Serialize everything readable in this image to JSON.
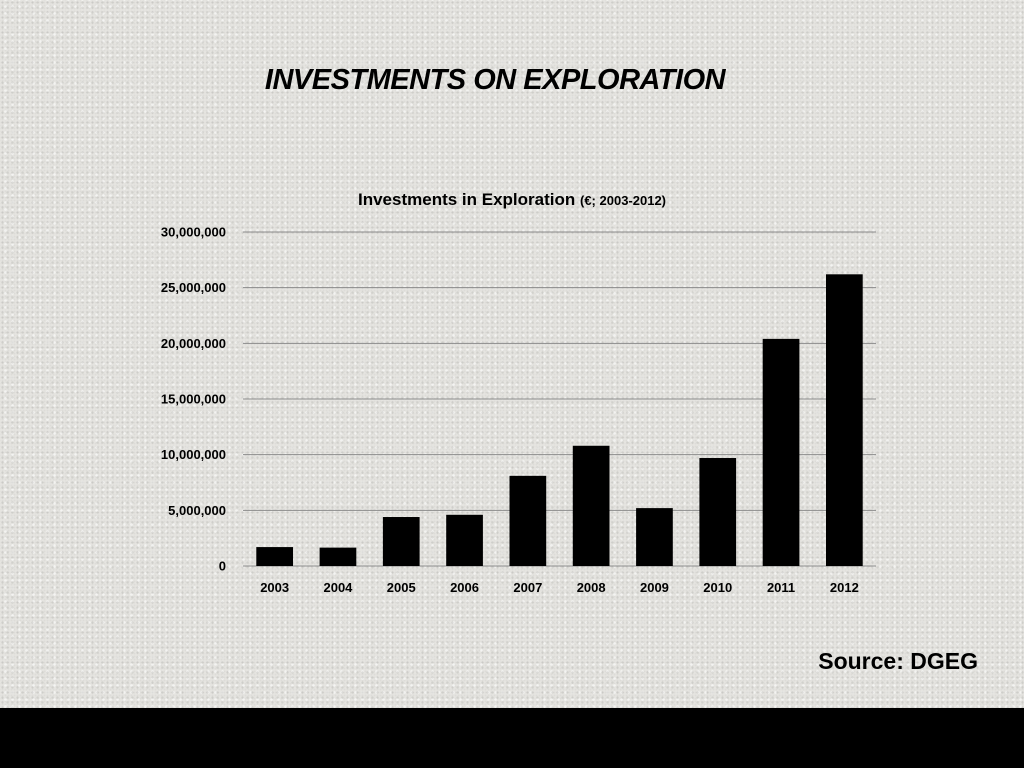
{
  "slide": {
    "title": "INVESTMENTS ON EXPLORATION",
    "source": "Source: DGEG"
  },
  "chart_data": {
    "type": "bar",
    "title": "Investments in Exploration",
    "subtitle": "(€; 2003-2012)",
    "xlabel": "",
    "ylabel": "",
    "categories": [
      "2003",
      "2004",
      "2005",
      "2006",
      "2007",
      "2008",
      "2009",
      "2010",
      "2011",
      "2012"
    ],
    "values": [
      1700000,
      1650000,
      4400000,
      4600000,
      8100000,
      10800000,
      5200000,
      9700000,
      20400000,
      26200000
    ],
    "ylim": [
      0,
      30000000
    ],
    "yticks": [
      0,
      5000000,
      10000000,
      15000000,
      20000000,
      25000000,
      30000000
    ],
    "ytick_labels": [
      "0",
      "5,000,000",
      "10,000,000",
      "15,000,000",
      "20,000,000",
      "25,000,000",
      "30,000,000"
    ],
    "grid": true,
    "legend": "none",
    "bar_color": "#000000",
    "grid_color": "#8a8a8a"
  }
}
